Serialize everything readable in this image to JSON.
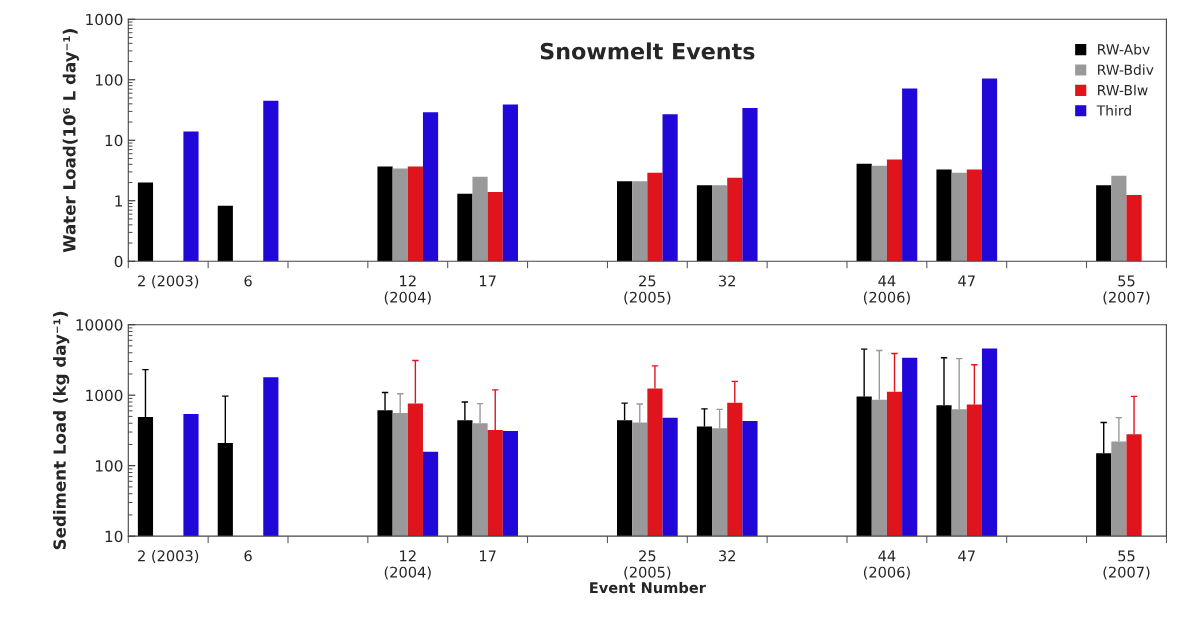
{
  "chart_data": [
    {
      "type": "bar",
      "title": "Snowmelt Events",
      "ylabel": "Water Load(10⁶ L day⁻¹)",
      "log": "y",
      "categories": [
        "2 (2003)",
        "6",
        null,
        "12\n(2004)",
        "17",
        null,
        "25\n(2005)",
        "32",
        null,
        "44\n(2006)",
        "47",
        null,
        "55\n(2007)"
      ],
      "ylim": [
        0.1,
        1000
      ],
      "yticks": [
        {
          "value": 0.1,
          "label": "0"
        },
        1,
        10,
        100,
        1000
      ],
      "grid": false,
      "legend": "top right",
      "series": [
        {
          "name": "RW-Abv",
          "color": "#000000",
          "values": [
            2.0,
            0.83,
            null,
            3.7,
            1.3,
            null,
            2.1,
            1.8,
            null,
            4.1,
            3.3,
            null,
            1.8
          ]
        },
        {
          "name": "RW-Bdiv",
          "color": "#999999",
          "values": [
            null,
            null,
            null,
            3.4,
            2.5,
            null,
            2.1,
            1.8,
            null,
            3.8,
            2.9,
            null,
            2.6
          ]
        },
        {
          "name": "RW-Blw",
          "color": "#e0141c",
          "values": [
            null,
            null,
            null,
            3.7,
            1.4,
            null,
            2.9,
            2.4,
            null,
            4.8,
            3.3,
            null,
            1.25
          ]
        },
        {
          "name": "Third",
          "color": "#2208d8",
          "values": [
            14,
            45,
            null,
            29,
            39,
            null,
            27,
            34,
            null,
            72,
            105,
            null,
            null
          ]
        }
      ]
    },
    {
      "type": "bar",
      "ylabel": "Sediment Load (kg day⁻¹)",
      "xlabel": "Event Number",
      "log": "y",
      "categories": [
        "2 (2003)",
        "6",
        null,
        "12\n(2004)",
        "17",
        null,
        "25\n(2005)",
        "32",
        null,
        "44\n(2006)",
        "47",
        null,
        "55\n(2007)"
      ],
      "ylim": [
        10,
        10000
      ],
      "yticks": [
        10,
        100,
        1000,
        10000
      ],
      "grid": false,
      "legend": false,
      "series": [
        {
          "color": "#000000",
          "values": [
            490,
            210,
            null,
            610,
            440,
            null,
            440,
            360,
            null,
            960,
            720,
            null,
            150
          ],
          "errors": [
            [
              490,
              2300
            ],
            [
              210,
              970
            ],
            null,
            [
              610,
              1090
            ],
            [
              440,
              800
            ],
            null,
            [
              440,
              770
            ],
            [
              360,
              640
            ],
            null,
            [
              960,
              4500
            ],
            [
              720,
              3400
            ],
            null,
            [
              150,
              410
            ]
          ]
        },
        {
          "color": "#999999",
          "values": [
            null,
            null,
            null,
            560,
            400,
            null,
            410,
            340,
            null,
            860,
            630,
            null,
            220
          ],
          "errors": [
            null,
            null,
            null,
            [
              560,
              1050
            ],
            [
              400,
              760
            ],
            null,
            [
              410,
              750
            ],
            [
              340,
              630
            ],
            null,
            [
              860,
              4300
            ],
            [
              630,
              3300
            ],
            null,
            [
              220,
              480
            ]
          ]
        },
        {
          "color": "#e0141c",
          "values": [
            null,
            null,
            null,
            760,
            320,
            null,
            1240,
            780,
            null,
            1120,
            740,
            null,
            280
          ],
          "errors": [
            null,
            null,
            null,
            [
              760,
              3100
            ],
            [
              320,
              1190
            ],
            null,
            [
              1240,
              2600
            ],
            [
              780,
              1570
            ],
            null,
            [
              1120,
              3900
            ],
            [
              740,
              2700
            ],
            null,
            [
              280,
              960
            ]
          ]
        },
        {
          "color": "#2208d8",
          "values": [
            540,
            1800,
            null,
            157,
            310,
            null,
            480,
            430,
            null,
            3400,
            4600,
            null,
            null
          ]
        }
      ]
    }
  ]
}
